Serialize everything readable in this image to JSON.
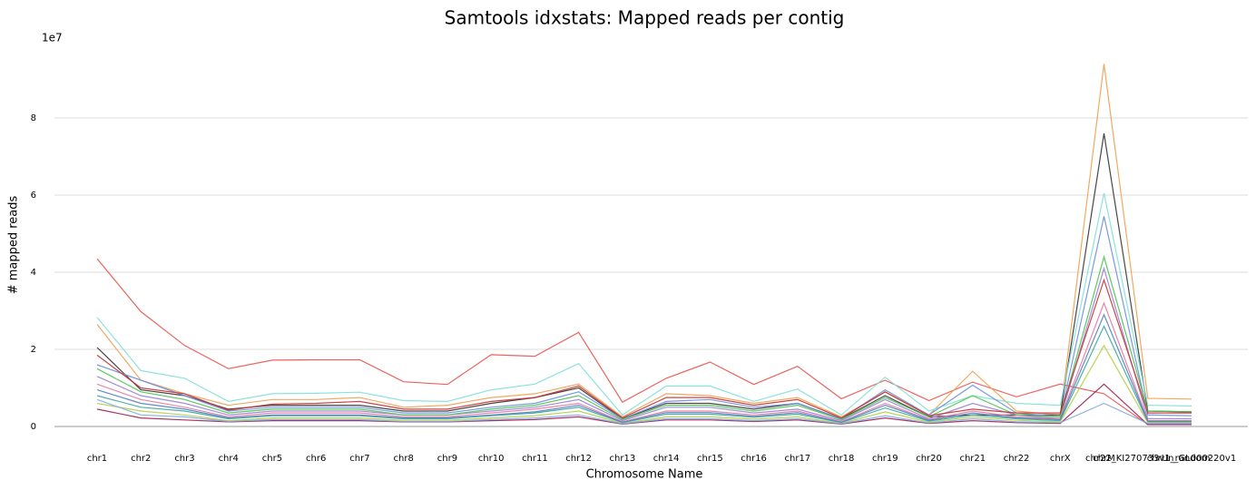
{
  "chart_data": {
    "type": "line",
    "title": "Samtools idxstats: Mapped reads per contig",
    "x_label": "Chromosome Name",
    "y_label": "# mapped reads",
    "y_offset_label": "1e7",
    "grid": true,
    "categories": [
      "chr1",
      "chr2",
      "chr3",
      "chr4",
      "chr5",
      "chr6",
      "chr7",
      "chr8",
      "chr9",
      "chr10",
      "chr11",
      "chr12",
      "chr13",
      "chr14",
      "chr15",
      "chr16",
      "chr17",
      "chr18",
      "chr19",
      "chr20",
      "chr21",
      "chr22",
      "chrX",
      "chrM",
      "chr22_KI270733v1_random",
      "chrUn_GL000220v1"
    ],
    "ylim": [
      0,
      100000000
    ],
    "yticks": [
      {
        "value": 0,
        "label": "0"
      },
      {
        "value": 20000000,
        "label": "2"
      },
      {
        "value": 40000000,
        "label": "4"
      },
      {
        "value": 60000000,
        "label": "6"
      },
      {
        "value": 80000000,
        "label": "8"
      }
    ],
    "series": [
      {
        "color": "#e8534f",
        "values": [
          43500000.0,
          29800000.0,
          21000000.0,
          15000000.0,
          17200000.0,
          17300000.0,
          17300000.0,
          11600000.0,
          10900000.0,
          18600000.0,
          18200000.0,
          24400000.0,
          6300000.0,
          12500000.0,
          16700000.0,
          10900000.0,
          15600000.0,
          7200000.0,
          12000000.0,
          6700000.0,
          11500000.0,
          7700000.0,
          11000000.0,
          8500000.0,
          500000.0,
          500000.0
        ]
      },
      {
        "color": "#f0a050",
        "values": [
          26500000.0,
          12000000.0,
          8500000.0,
          5500000.0,
          7000000.0,
          7000000.0,
          7500000.0,
          5000000.0,
          5500000.0,
          7500000.0,
          8500000.0,
          11000000.0,
          2500000.0,
          8500000.0,
          8000000.0,
          6000000.0,
          7500000.0,
          2500000.0,
          9000000.0,
          3000000.0,
          14300000.0,
          4000000.0,
          3000000.0,
          94000000.0,
          7300000.0,
          7100000.0
        ]
      },
      {
        "color": "#333333",
        "values": [
          20500000.0,
          9500000.0,
          8000000.0,
          4500000.0,
          5500000.0,
          5500000.0,
          5500000.0,
          4000000.0,
          4000000.0,
          6000000.0,
          7500000.0,
          10000000.0,
          2000000.0,
          6000000.0,
          6000000.0,
          4500000.0,
          6000000.0,
          2000000.0,
          8000000.0,
          2500000.0,
          3000000.0,
          3000000.0,
          3000000.0,
          76000000.0,
          4000000.0,
          3800000.0
        ]
      },
      {
        "color": "#7fe0d8",
        "values": [
          28300000.0,
          14500000.0,
          12500000.0,
          6500000.0,
          8500000.0,
          8600000.0,
          8900000.0,
          6700000.0,
          6500000.0,
          9500000.0,
          11000000.0,
          16300000.0,
          3000000.0,
          10500000.0,
          10500000.0,
          6500000.0,
          9700000.0,
          3000000.0,
          12800000.0,
          4000000.0,
          8000000.0,
          6000000.0,
          5500000.0,
          60500000.0,
          5500000.0,
          5300000.0
        ]
      },
      {
        "color": "#6a8fe0",
        "values": [
          16000000.0,
          12000000.0,
          8000000.0,
          4000000.0,
          5000000.0,
          5000000.0,
          5000000.0,
          3500000.0,
          3500000.0,
          5000000.0,
          6000000.0,
          9000000.0,
          2000000.0,
          6500000.0,
          7000000.0,
          5000000.0,
          6000000.0,
          2000000.0,
          9500000.0,
          3000000.0,
          10700000.0,
          3500000.0,
          2500000.0,
          54500000.0,
          3000000.0,
          2800000.0
        ]
      },
      {
        "color": "#9b7fd4",
        "values": [
          13000000.0,
          8000000.0,
          6000000.0,
          3000000.0,
          4000000.0,
          4000000.0,
          4000000.0,
          3000000.0,
          3000000.0,
          4000000.0,
          5000000.0,
          7000000.0,
          1500000.0,
          5000000.0,
          5000000.0,
          3500000.0,
          4500000.0,
          1500000.0,
          7000000.0,
          2000000.0,
          6000000.0,
          3000000.0,
          2000000.0,
          41000000.0,
          2000000.0,
          2000000.0
        ]
      },
      {
        "color": "#4cc24c",
        "values": [
          15000000.0,
          9000000.0,
          7000000.0,
          3500000.0,
          4500000.0,
          4500000.0,
          4500000.0,
          3000000.0,
          3000000.0,
          4500000.0,
          5500000.0,
          8000000.0,
          1800000.0,
          5500000.0,
          5500000.0,
          4000000.0,
          5500000.0,
          1800000.0,
          7500000.0,
          2500000.0,
          8000000.0,
          3000000.0,
          2500000.0,
          44000000.0,
          4000000.0,
          3800000.0
        ]
      },
      {
        "color": "#e879a0",
        "values": [
          11000000.0,
          7000000.0,
          5000000.0,
          2500000.0,
          3500000.0,
          3500000.0,
          3500000.0,
          2500000.0,
          2500000.0,
          3500000.0,
          4500000.0,
          6000000.0,
          1200000.0,
          4000000.0,
          4000000.0,
          3000000.0,
          4000000.0,
          1200000.0,
          6000000.0,
          1800000.0,
          4000000.0,
          2500000.0,
          2000000.0,
          32000000.0,
          1500000.0,
          1500000.0
        ]
      },
      {
        "color": "#3aa6a0",
        "values": [
          8000000.0,
          5000000.0,
          4000000.0,
          2000000.0,
          2800000.0,
          2800000.0,
          2800000.0,
          2000000.0,
          2000000.0,
          2800000.0,
          3500000.0,
          5000000.0,
          1000000.0,
          3200000.0,
          3200000.0,
          2400000.0,
          3200000.0,
          1000000.0,
          4800000.0,
          1400000.0,
          3000000.0,
          2000000.0,
          1500000.0,
          26000000.0,
          1200000.0,
          1200000.0
        ]
      },
      {
        "color": "#b0d040",
        "values": [
          6000000.0,
          4000000.0,
          3000000.0,
          1500000.0,
          2200000.0,
          2200000.0,
          2200000.0,
          1600000.0,
          1600000.0,
          2200000.0,
          2800000.0,
          4000000.0,
          800000.0,
          2500000.0,
          2500000.0,
          1900000.0,
          2500000.0,
          800000.0,
          3800000.0,
          1100000.0,
          2500000.0,
          1600000.0,
          1200000.0,
          21000000.0,
          1000000.0,
          1000000.0
        ]
      },
      {
        "color": "#a02050",
        "values": [
          4500000.0,
          2200000.0,
          1700000.0,
          1200000.0,
          1500000.0,
          1500000.0,
          1500000.0,
          1200000.0,
          1200000.0,
          1500000.0,
          1800000.0,
          2500000.0,
          600000.0,
          1700000.0,
          1700000.0,
          1300000.0,
          1700000.0,
          600000.0,
          2200000.0,
          800000.0,
          1500000.0,
          1000000.0,
          800000.0,
          11000000.0,
          500000.0,
          500000.0
        ]
      },
      {
        "color": "#7fa8e8",
        "values": [
          7000000.0,
          3000000.0,
          2500000.0,
          1300000.0,
          1800000.0,
          1800000.0,
          1800000.0,
          1300000.0,
          1300000.0,
          1800000.0,
          2200000.0,
          3000000.0,
          700000.0,
          2000000.0,
          2000000.0,
          1500000.0,
          2000000.0,
          700000.0,
          2800000.0,
          900000.0,
          2000000.0,
          1200000.0,
          1000000.0,
          6000000.0,
          800000.0,
          800000.0
        ]
      },
      {
        "color": "#c83030",
        "values": [
          18500000.0,
          10000000.0,
          8500000.0,
          4200000.0,
          5800000.0,
          6000000.0,
          6500000.0,
          4500000.0,
          4500000.0,
          6500000.0,
          7500000.0,
          10500000.0,
          2200000.0,
          7500000.0,
          7500000.0,
          5500000.0,
          7000000.0,
          2200000.0,
          9000000.0,
          2800000.0,
          4500000.0,
          3500000.0,
          3500000.0,
          38000000.0,
          3500000.0,
          3500000.0
        ]
      },
      {
        "color": "#5080c0",
        "values": [
          9500000.0,
          6000000.0,
          4500000.0,
          2200000.0,
          3000000.0,
          3000000.0,
          3000000.0,
          2200000.0,
          2200000.0,
          3000000.0,
          3800000.0,
          5500000.0,
          1100000.0,
          3600000.0,
          3600000.0,
          2600000.0,
          3600000.0,
          1100000.0,
          5500000.0,
          1600000.0,
          3500000.0,
          2200000.0,
          1800000.0,
          29000000.0,
          1400000.0,
          1400000.0
        ]
      }
    ]
  }
}
